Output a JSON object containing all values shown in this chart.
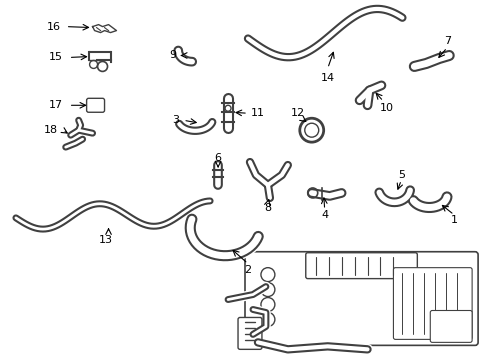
{
  "background_color": "#ffffff",
  "line_color": "#404040",
  "fig_width": 4.9,
  "fig_height": 3.6,
  "dpi": 100
}
